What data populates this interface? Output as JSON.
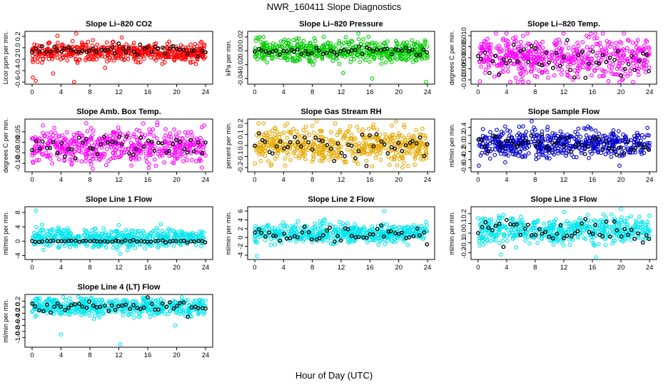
{
  "figure": {
    "title": "NWR_160411  Slope Diagnostics",
    "xlabel": "Hour of Day (UTC)"
  },
  "chart_data": [
    {
      "type": "scatter",
      "title": "Slope Li–820 CO2",
      "ylabel": "Licor ppm per min.",
      "color": "#ff0000",
      "xlim": [
        0,
        24
      ],
      "ylim": [
        -0.6,
        0.25
      ],
      "xticks": [
        0,
        4,
        8,
        12,
        16,
        20,
        24
      ],
      "yticks": [
        -0.6,
        -0.4,
        -0.2,
        0.0,
        0.2
      ],
      "ytick_labels": [
        "-0.6",
        "-0.4",
        "-0.2",
        "0.0",
        "0.2"
      ],
      "series": [
        {
          "role": "samples",
          "spread": 0.08,
          "center": -0.08,
          "outliers": [
            [
              0.1,
              -0.52
            ],
            [
              0.5,
              -0.58
            ],
            [
              5.8,
              -0.62
            ],
            [
              2.9,
              -0.45
            ],
            [
              10.1,
              -0.35
            ],
            [
              11.9,
              -0.18
            ],
            [
              3.5,
              0.21
            ],
            [
              6.1,
              0.26
            ],
            [
              12.4,
              0.18
            ]
          ]
        },
        {
          "role": "hourly",
          "center": -0.05,
          "spread": 0.05
        }
      ]
    },
    {
      "type": "scatter",
      "title": "Slope Li–820 Pressure",
      "ylabel": "kPa per min.",
      "color": "#00cc00",
      "xlim": [
        0,
        24
      ],
      "ylim": [
        -0.045,
        0.025
      ],
      "xticks": [
        0,
        4,
        8,
        12,
        16,
        20,
        24
      ],
      "yticks": [
        -0.04,
        -0.02,
        0.0,
        0.02
      ],
      "ytick_labels": [
        "-0.04",
        "-0.02",
        "0.00",
        "0.02"
      ],
      "series": [
        {
          "role": "samples",
          "spread": 0.008,
          "center": 0.0,
          "outliers": [
            [
              0.5,
              0.018
            ],
            [
              1.2,
              0.02
            ],
            [
              8.1,
              -0.02
            ],
            [
              12.3,
              -0.032
            ],
            [
              14.4,
              0.026
            ],
            [
              16.3,
              -0.04
            ],
            [
              15.8,
              0.02
            ],
            [
              23.8,
              -0.045
            ],
            [
              10.2,
              0.012
            ]
          ]
        },
        {
          "role": "hourly",
          "center": 0.0,
          "spread": 0.003
        }
      ]
    },
    {
      "type": "scatter",
      "title": "Slope Li–820 Temp.",
      "ylabel": "degrees C per min.",
      "color": "#ff00ff",
      "xlim": [
        0,
        24
      ],
      "ylim": [
        -0.011,
        0.011
      ],
      "xticks": [
        0,
        4,
        8,
        12,
        16,
        20,
        24
      ],
      "yticks": [
        -0.01,
        -0.005,
        0.0,
        0.005,
        0.01
      ],
      "ytick_labels": [
        "-0.010",
        "-0.005",
        "0.000",
        "0.005",
        "0.010"
      ],
      "series": [
        {
          "role": "samples",
          "spread": 0.0045,
          "center": 0.0,
          "outliers": [
            [
              2.5,
              0.011
            ],
            [
              15.2,
              0.01
            ],
            [
              19.8,
              -0.011
            ],
            [
              13.3,
              -0.01
            ]
          ]
        },
        {
          "role": "hourly",
          "center": 0.0,
          "spread": 0.004
        }
      ]
    },
    {
      "type": "scatter",
      "title": "Slope Amb. Box Temp.",
      "ylabel": "degrees C per min.",
      "color": "#ff00ff",
      "xlim": [
        0,
        24
      ],
      "ylim": [
        -0.13,
        0.1
      ],
      "xticks": [
        0,
        4,
        8,
        12,
        16,
        20,
        24
      ],
      "yticks": [
        -0.1,
        -0.05,
        0.0,
        0.05
      ],
      "ytick_labels": [
        "-0.10",
        "-0.05",
        "0.00",
        "0.05"
      ],
      "series": [
        {
          "role": "samples",
          "spread": 0.04,
          "center": -0.02,
          "outliers": [
            [
              1.5,
              0.08
            ],
            [
              7.5,
              0.09
            ],
            [
              2.8,
              -0.1
            ],
            [
              23.5,
              -0.12
            ],
            [
              23.8,
              0.08
            ]
          ]
        },
        {
          "role": "hourly",
          "center": -0.01,
          "spread": 0.03
        }
      ]
    },
    {
      "type": "scatter",
      "title": "Slope Gas Stream RH",
      "ylabel": "percent per min.",
      "color": "#e5a800",
      "xlim": [
        0,
        24
      ],
      "ylim": [
        -0.22,
        0.22
      ],
      "xticks": [
        0,
        4,
        8,
        12,
        16,
        20,
        24
      ],
      "yticks": [
        -0.2,
        -0.1,
        0.0,
        0.1,
        0.2
      ],
      "ytick_labels": [
        "-0.2",
        "-0.1",
        "0.0",
        "0.1",
        "0.2"
      ],
      "series": [
        {
          "role": "samples",
          "spread": 0.08,
          "center": 0.0,
          "outliers": [
            [
              0.5,
              0.2
            ],
            [
              1.2,
              0.2
            ],
            [
              19.8,
              -0.18
            ],
            [
              20.5,
              -0.2
            ],
            [
              16.5,
              0.19
            ]
          ]
        },
        {
          "role": "hourly",
          "center": 0.0,
          "spread": 0.07
        }
      ]
    },
    {
      "type": "scatter",
      "title": "Slope Sample Flow",
      "ylabel": "ml/min per min.",
      "color": "#0000cc",
      "xlim": [
        0,
        24
      ],
      "ylim": [
        -0.65,
        0.55
      ],
      "xticks": [
        0,
        4,
        8,
        12,
        16,
        20,
        24
      ],
      "yticks": [
        -0.6,
        -0.4,
        -0.2,
        0.0,
        0.2,
        0.4
      ],
      "ytick_labels": [
        "-0.6",
        "-0.4",
        "-0.2",
        "0.0",
        "0.2",
        "0.4"
      ],
      "series": [
        {
          "role": "samples",
          "spread": 0.17,
          "center": 0.0,
          "outliers": [
            [
              0.1,
              -0.55
            ],
            [
              7.5,
              0.55
            ],
            [
              19.8,
              -0.55
            ],
            [
              3.8,
              0.42
            ],
            [
              15.4,
              0.42
            ]
          ]
        },
        {
          "role": "hourly",
          "center": 0.0,
          "spread": 0.12
        }
      ]
    },
    {
      "type": "scatter",
      "title": "Slope Line 1 Flow",
      "ylabel": "ml/min per min.",
      "color": "#00e5ee",
      "xlim": [
        0,
        24
      ],
      "ylim": [
        -4.5,
        9
      ],
      "xticks": [
        0,
        4,
        8,
        12,
        16,
        20,
        24
      ],
      "yticks": [
        -4,
        0,
        4,
        8
      ],
      "ytick_labels": [
        "-4",
        "0",
        "4",
        "8"
      ],
      "series": [
        {
          "role": "samples",
          "spread": 1.3,
          "center": 0.8,
          "outliers": [
            [
              0.5,
              8.5
            ],
            [
              12.2,
              -3.5
            ],
            [
              12.0,
              4.5
            ]
          ]
        },
        {
          "role": "hourly",
          "center": 0.0,
          "spread": 0.15
        }
      ]
    },
    {
      "type": "scatter",
      "title": "Slope Line 2 Flow",
      "ylabel": "ml/min per min.",
      "color": "#00e5ee",
      "xlim": [
        0,
        24
      ],
      "ylim": [
        -4.5,
        6.5
      ],
      "xticks": [
        0,
        4,
        8,
        12,
        16,
        20,
        24
      ],
      "yticks": [
        -4,
        -2,
        0,
        2,
        4,
        6
      ],
      "ytick_labels": [
        "-4",
        "-2",
        "0",
        "2",
        "4",
        "6"
      ],
      "series": [
        {
          "role": "samples",
          "spread": 1.1,
          "center": 1.0,
          "outliers": [
            [
              0.3,
              -4.2
            ],
            [
              18.0,
              6.0
            ],
            [
              23.8,
              3.5
            ]
          ]
        },
        {
          "role": "hourly",
          "center": 0.8,
          "spread": 0.9
        }
      ]
    },
    {
      "type": "scatter",
      "title": "Slope Line 3 Flow",
      "ylabel": "ml/min per min.",
      "color": "#00e5ee",
      "xlim": [
        0,
        24
      ],
      "ylim": [
        -0.25,
        0.25
      ],
      "xticks": [
        0,
        4,
        8,
        12,
        16,
        20,
        24
      ],
      "yticks": [
        -0.2,
        -0.1,
        0.0,
        0.1,
        0.2
      ],
      "ytick_labels": [
        "-0.2",
        "-0.1",
        "0.0",
        "0.1",
        "0.2"
      ],
      "series": [
        {
          "role": "samples",
          "spread": 0.07,
          "center": 0.03,
          "outliers": [
            [
              20.0,
              0.25
            ],
            [
              16.5,
              -0.25
            ],
            [
              3.2,
              -0.22
            ]
          ]
        },
        {
          "role": "hourly",
          "center": 0.02,
          "spread": 0.07
        }
      ]
    },
    {
      "type": "scatter",
      "title": "Slope Line 4 (LT) Flow",
      "ylabel": "ml/min per min.",
      "color": "#00e5ee",
      "xlim": [
        0,
        24
      ],
      "ylim": [
        -1.25,
        0.35
      ],
      "xticks": [
        0,
        4,
        8,
        12,
        16,
        20,
        24
      ],
      "yticks": [
        -1.0,
        -0.8,
        -0.6,
        -0.4,
        -0.2,
        0.0,
        0.2
      ],
      "ytick_labels": [
        "-1.0",
        "-0.8",
        "-0.6",
        "-0.4",
        "-0.2",
        "0.0",
        "0.2"
      ],
      "series": [
        {
          "role": "samples",
          "spread": 0.14,
          "center": 0.02,
          "outliers": [
            [
              4.0,
              -0.9
            ],
            [
              12.2,
              -1.22
            ],
            [
              19.8,
              -0.6
            ]
          ]
        },
        {
          "role": "hourly",
          "center": 0.0,
          "spread": 0.12
        }
      ]
    }
  ]
}
